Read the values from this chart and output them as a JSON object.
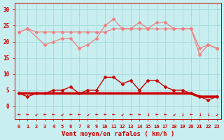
{
  "x": [
    0,
    1,
    2,
    3,
    4,
    5,
    6,
    7,
    8,
    9,
    10,
    11,
    12,
    13,
    14,
    15,
    16,
    17,
    18,
    19,
    20,
    21,
    22,
    23
  ],
  "line_rafales_mean": [
    23,
    24,
    23,
    23,
    23,
    23,
    23,
    23,
    23,
    23,
    23,
    24,
    24,
    24,
    24,
    24,
    24,
    24,
    24,
    24,
    24,
    18,
    19,
    18
  ],
  "line_rafales_max": [
    23,
    24,
    null,
    19,
    20,
    21,
    21,
    18,
    19,
    21,
    25,
    27,
    24,
    24,
    26,
    24,
    26,
    26,
    24,
    24,
    24,
    16,
    19,
    18
  ],
  "line_vent_moy": [
    4,
    3,
    4,
    4,
    5,
    5,
    6,
    4,
    5,
    5,
    9,
    9,
    7,
    8,
    5,
    8,
    8,
    6,
    5,
    5,
    4,
    3,
    2,
    3
  ],
  "line_vent_flat": [
    4,
    4,
    4,
    4,
    4,
    4,
    4,
    4,
    4,
    4,
    4,
    4,
    4,
    4,
    4,
    4,
    4,
    4,
    4,
    4,
    4,
    3,
    3,
    3
  ],
  "bg_color": "#c8eef0",
  "grid_color": "#aadde0",
  "color_light": "#f08080",
  "color_dark": "#cc0000",
  "xlabel": "Vent moyen/en rafales ( km/h )",
  "ylim": [
    -4,
    32
  ],
  "yticks": [
    0,
    5,
    10,
    15,
    20,
    25,
    30
  ],
  "xlim": [
    -0.5,
    23.5
  ],
  "wind_symbols": [
    "←",
    "←",
    "↙",
    "←",
    "←",
    "↙",
    "←",
    "←",
    "↙",
    "←",
    "←",
    "←",
    "↙",
    "←",
    "←",
    "↓",
    "←",
    "←",
    "↙",
    "↓",
    "←",
    "↓",
    "↓",
    "↙"
  ]
}
